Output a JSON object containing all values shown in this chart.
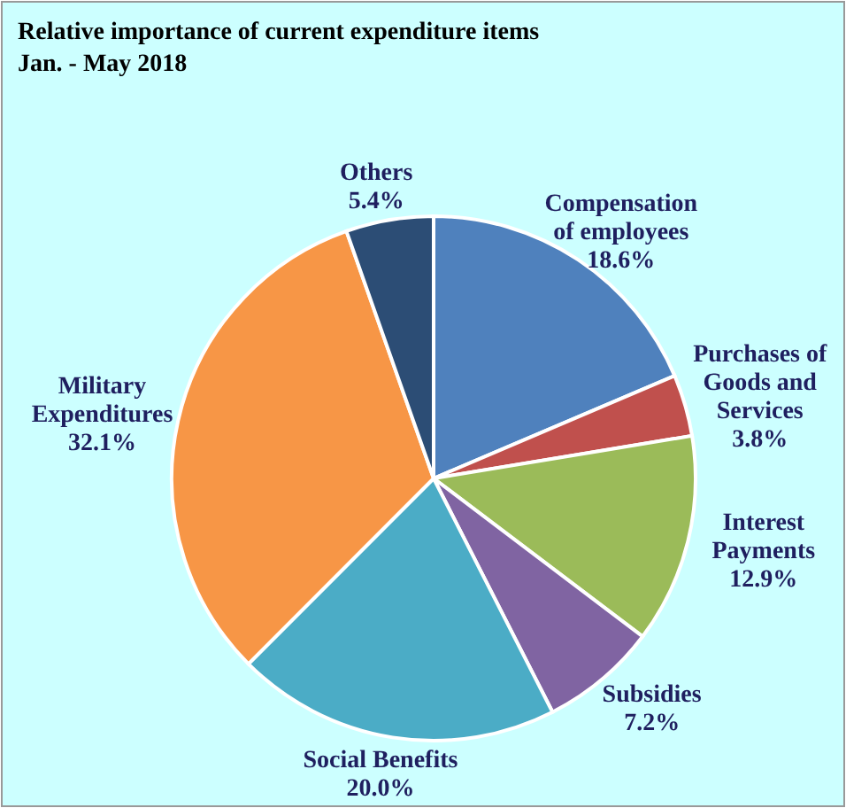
{
  "chart_data": {
    "type": "pie",
    "title": "Relative importance of current expenditure  items",
    "subtitle": "Jan. - May  2018",
    "categories": [
      "Compensation of employees",
      "Purchases of Goods and Services",
      "Interest Payments",
      "Subsidies",
      "Social Benefits",
      "Military Expenditures",
      "Others"
    ],
    "values": [
      18.6,
      3.8,
      12.9,
      7.2,
      20.0,
      32.1,
      5.4
    ],
    "value_labels": [
      "18.6%",
      "3.8%",
      "12.9%",
      "7.2%",
      "20.0%",
      "32.1%",
      "5.4%"
    ],
    "colors": [
      "#4f81bd",
      "#c0504d",
      "#9bbb59",
      "#8064a2",
      "#4bacc6",
      "#f79646",
      "#2c4d75"
    ],
    "legend": false
  }
}
